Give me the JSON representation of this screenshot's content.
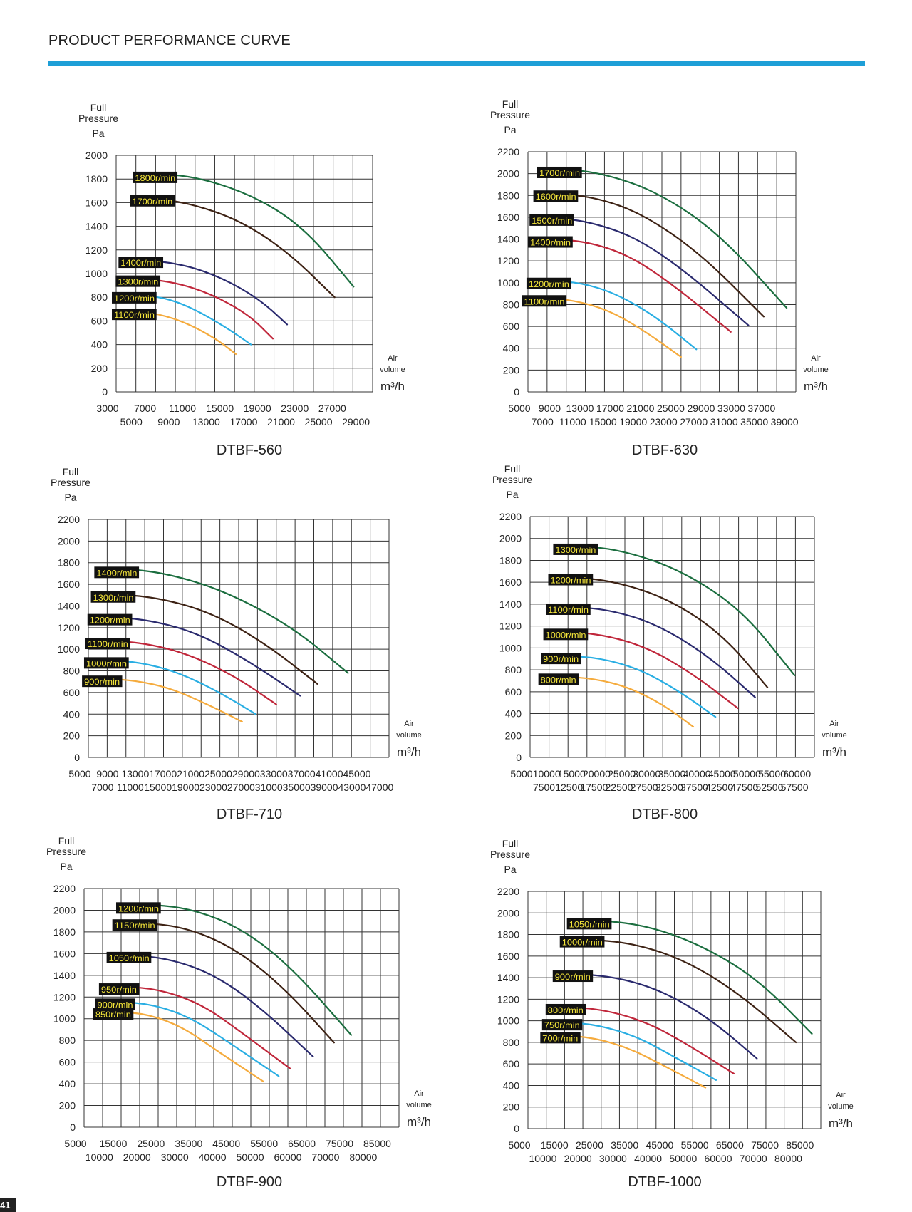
{
  "page": {
    "header_title": "PRODUCT PERFORMANCE CURVE",
    "page_number": "41"
  },
  "colors": {
    "accent": "#1e9fd7",
    "label_bg": "#111111",
    "label_text": "#f5e63a",
    "series": [
      "#1b6e3f",
      "#3d2214",
      "#2a2a6e",
      "#c0263a",
      "#29aee3",
      "#f5ab3d"
    ]
  },
  "chart_data": [
    {
      "type": "line",
      "title": "DTBF-560",
      "ylabel_lines": [
        "Full",
        "Pressure",
        "Pa"
      ],
      "xlabel_lines": [
        "Air",
        "volume",
        "m³/h"
      ],
      "ylim": [
        0,
        2000
      ],
      "yticks": [
        "0",
        "200",
        "400",
        "600",
        "800",
        "1000",
        "1200",
        "1400",
        "1600",
        "1800",
        "2000"
      ],
      "xlim": [
        3000,
        30000
      ],
      "xticks_top": [
        "3000",
        "7000",
        "11000",
        "15000",
        "19000",
        "23000",
        "27000"
      ],
      "xticks_bottom": [
        "5000",
        "9000",
        "13000",
        "17000",
        "21000",
        "25000",
        "29000"
      ],
      "series": [
        {
          "name": "1800r/min",
          "x": [
            7000,
            12000,
            18000,
            23000,
            28000
          ],
          "y": [
            1850,
            1810,
            1640,
            1370,
            890
          ]
        },
        {
          "name": "1700r/min",
          "x": [
            6700,
            11000,
            16000,
            21000,
            26000
          ],
          "y": [
            1640,
            1590,
            1450,
            1190,
            800
          ]
        },
        {
          "name": "1400r/min",
          "x": [
            5500,
            10000,
            14000,
            18000,
            21000
          ],
          "y": [
            1120,
            1080,
            970,
            790,
            570
          ]
        },
        {
          "name": "1300r/min",
          "x": [
            5200,
            9000,
            13000,
            17000,
            19500
          ],
          "y": [
            960,
            930,
            830,
            650,
            450
          ]
        },
        {
          "name": "1200r/min",
          "x": [
            4800,
            8000,
            11000,
            14500,
            17200
          ],
          "y": [
            820,
            800,
            710,
            550,
            400
          ]
        },
        {
          "name": "1100r/min",
          "x": [
            4800,
            7500,
            10500,
            13500,
            15600
          ],
          "y": [
            680,
            660,
            580,
            450,
            320
          ]
        }
      ]
    },
    {
      "type": "line",
      "title": "DTBF-630",
      "ylabel_lines": [
        "Full",
        "Pressure",
        "Pa"
      ],
      "xlabel_lines": [
        "Air",
        "volume",
        "m³/h"
      ],
      "ylim": [
        0,
        2200
      ],
      "yticks": [
        "0",
        "200",
        "400",
        "600",
        "800",
        "1000",
        "1200",
        "1400",
        "1600",
        "1800",
        "2000",
        "2200"
      ],
      "xlim": [
        5000,
        40000
      ],
      "xticks_top": [
        "5000",
        "9000",
        "13000",
        "17000",
        "21000",
        "25000",
        "29000",
        "33000",
        "37000"
      ],
      "xticks_bottom": [
        "7000",
        "11000",
        "15000",
        "19000",
        "23000",
        "27000",
        "31000",
        "35000",
        "39000"
      ],
      "series": [
        {
          "name": "1700r/min",
          "x": [
            9000,
            15000,
            22000,
            30000,
            38800
          ],
          "y": [
            2050,
            2000,
            1830,
            1450,
            770
          ]
        },
        {
          "name": "1600r/min",
          "x": [
            8500,
            14000,
            20000,
            27500,
            35800
          ],
          "y": [
            1820,
            1780,
            1630,
            1270,
            690
          ]
        },
        {
          "name": "1500r/min",
          "x": [
            8000,
            13000,
            19000,
            25500,
            33800
          ],
          "y": [
            1600,
            1560,
            1420,
            1110,
            610
          ]
        },
        {
          "name": "1400r/min",
          "x": [
            7800,
            12500,
            18000,
            24000,
            31500
          ],
          "y": [
            1400,
            1380,
            1260,
            980,
            550
          ]
        },
        {
          "name": "1200r/min",
          "x": [
            7600,
            12000,
            16500,
            21500,
            27000
          ],
          "y": [
            1020,
            1000,
            900,
            700,
            390
          ]
        },
        {
          "name": "1100r/min",
          "x": [
            7000,
            11000,
            15500,
            20000,
            25000
          ],
          "y": [
            860,
            840,
            750,
            570,
            320
          ]
        }
      ]
    },
    {
      "type": "line",
      "title": "DTBF-710",
      "ylabel_lines": [
        "Full",
        "Pressure",
        "Pa"
      ],
      "xlabel_lines": [
        "Air",
        "volume",
        "m³/h"
      ],
      "ylim": [
        0,
        2200
      ],
      "yticks": [
        "0",
        "200",
        "400",
        "600",
        "800",
        "1000",
        "1200",
        "1400",
        "1600",
        "1800",
        "2000",
        "2200"
      ],
      "xlim": [
        5000,
        49000
      ],
      "xticks_top": [
        "5000",
        "9000",
        "13000",
        "17000",
        "21000",
        "25000",
        "29000",
        "33000",
        "37000",
        "41000",
        "45000"
      ],
      "xticks_bottom": [
        "7000",
        "11000",
        "15000",
        "19000",
        "23000",
        "27000",
        "31000",
        "35000",
        "39000",
        "43000",
        "47000"
      ],
      "series": [
        {
          "name": "1400r/min",
          "x": [
            9000,
            16000,
            25000,
            35000,
            43000
          ],
          "y": [
            1750,
            1710,
            1540,
            1200,
            780
          ]
        },
        {
          "name": "1300r/min",
          "x": [
            8500,
            15000,
            23000,
            31000,
            38500
          ],
          "y": [
            1510,
            1480,
            1340,
            1050,
            680
          ]
        },
        {
          "name": "1200r/min",
          "x": [
            8000,
            14000,
            21000,
            28500,
            36000
          ],
          "y": [
            1300,
            1270,
            1150,
            890,
            570
          ]
        },
        {
          "name": "1100r/min",
          "x": [
            7700,
            13000,
            19500,
            26500,
            32500
          ],
          "y": [
            1080,
            1060,
            960,
            750,
            490
          ]
        },
        {
          "name": "1000r/min",
          "x": [
            7500,
            12500,
            18000,
            24000,
            29500
          ],
          "y": [
            900,
            880,
            790,
            610,
            400
          ]
        },
        {
          "name": "900r/min",
          "x": [
            7200,
            12000,
            17000,
            22500,
            27500
          ],
          "y": [
            730,
            710,
            640,
            490,
            330
          ]
        }
      ]
    },
    {
      "type": "line",
      "title": "DTBF-800",
      "ylabel_lines": [
        "Full",
        "Pressure",
        "Pa"
      ],
      "xlabel_lines": [
        "Air",
        "volume",
        "m³/h"
      ],
      "ylim": [
        0,
        2200
      ],
      "yticks": [
        "0",
        "200",
        "400",
        "600",
        "800",
        "1000",
        "1200",
        "1400",
        "1600",
        "1800",
        "2000",
        "2200"
      ],
      "xlim": [
        5000,
        62500
      ],
      "xticks_top": [
        "5000",
        "10000",
        "15000",
        "20000",
        "25000",
        "30000",
        "35000",
        "40000",
        "45000",
        "50000",
        "55000",
        "60000"
      ],
      "xticks_bottom": [
        "7500",
        "12500",
        "17500",
        "22500",
        "27500",
        "32500",
        "37500",
        "42500",
        "47500",
        "52500",
        "57500"
      ],
      "series": [
        {
          "name": "1300r/min",
          "x": [
            14000,
            24000,
            36000,
            48000,
            58500
          ],
          "y": [
            1940,
            1890,
            1700,
            1340,
            750
          ]
        },
        {
          "name": "1200r/min",
          "x": [
            13000,
            22000,
            33000,
            44000,
            53000
          ],
          "y": [
            1650,
            1610,
            1450,
            1120,
            640
          ]
        },
        {
          "name": "1100r/min",
          "x": [
            12500,
            21000,
            30500,
            41000,
            50500
          ],
          "y": [
            1380,
            1350,
            1220,
            930,
            550
          ]
        },
        {
          "name": "1000r/min",
          "x": [
            12000,
            20000,
            29000,
            38000,
            47000
          ],
          "y": [
            1150,
            1120,
            1000,
            760,
            450
          ]
        },
        {
          "name": "900r/min",
          "x": [
            11500,
            19000,
            27000,
            35000,
            42500
          ],
          "y": [
            930,
            910,
            810,
            610,
            370
          ]
        },
        {
          "name": "800r/min",
          "x": [
            11000,
            18000,
            25000,
            32000,
            38000
          ],
          "y": [
            740,
            720,
            640,
            480,
            280
          ]
        }
      ]
    },
    {
      "type": "line",
      "title": "DTBF-900",
      "ylabel_lines": [
        "Full",
        "Pressure",
        "Pa"
      ],
      "xlabel_lines": [
        "Air",
        "volume",
        "m³/h"
      ],
      "ylim": [
        0,
        2200
      ],
      "yticks": [
        "0",
        "200",
        "400",
        "600",
        "800",
        "1000",
        "1200",
        "1400",
        "1600",
        "1800",
        "2000",
        "2200"
      ],
      "xlim": [
        5000,
        87500
      ],
      "xticks_top": [
        "5000",
        "15000",
        "25000",
        "35000",
        "45000",
        "55000",
        "65000",
        "75000",
        "85000"
      ],
      "xticks_bottom": [
        "10000",
        "20000",
        "30000",
        "40000",
        "50000",
        "60000",
        "70000",
        "80000"
      ],
      "series": [
        {
          "name": "1200r/min",
          "x": [
            19000,
            33000,
            47000,
            60000,
            75000
          ],
          "y": [
            2060,
            2020,
            1820,
            1450,
            850
          ]
        },
        {
          "name": "1150r/min",
          "x": [
            18000,
            31000,
            44000,
            57000,
            70500
          ],
          "y": [
            1890,
            1850,
            1660,
            1300,
            780
          ]
        },
        {
          "name": "1050r/min",
          "x": [
            16500,
            28000,
            40000,
            52000,
            65000
          ],
          "y": [
            1590,
            1550,
            1390,
            1080,
            650
          ]
        },
        {
          "name": "950r/min",
          "x": [
            14500,
            25000,
            36000,
            46000,
            59000
          ],
          "y": [
            1300,
            1270,
            1130,
            880,
            540
          ]
        },
        {
          "name": "900r/min",
          "x": [
            13500,
            23500,
            33500,
            43000,
            56000
          ],
          "y": [
            1160,
            1130,
            1000,
            780,
            470
          ]
        },
        {
          "name": "850r/min",
          "x": [
            13000,
            22000,
            31000,
            40000,
            52000
          ],
          "y": [
            1070,
            1040,
            920,
            700,
            420
          ]
        }
      ]
    },
    {
      "type": "line",
      "title": "DTBF-1000",
      "ylabel_lines": [
        "Full",
        "Pressure",
        "Pa"
      ],
      "xlabel_lines": [
        "Air",
        "volume",
        "m³/h"
      ],
      "ylim": [
        0,
        2200
      ],
      "yticks": [
        "0",
        "200",
        "400",
        "600",
        "800",
        "1000",
        "1200",
        "1400",
        "1600",
        "1800",
        "2000",
        "2200"
      ],
      "xlim": [
        5000,
        87500
      ],
      "xticks_top": [
        "5000",
        "15000",
        "25000",
        "35000",
        "45000",
        "55000",
        "65000",
        "75000",
        "85000"
      ],
      "xticks_bottom": [
        "10000",
        "20000",
        "30000",
        "40000",
        "50000",
        "60000",
        "70000",
        "80000"
      ],
      "series": [
        {
          "name": "1050r/min",
          "x": [
            22000,
            38000,
            54000,
            70000,
            85000
          ],
          "y": [
            1940,
            1890,
            1700,
            1380,
            880
          ]
        },
        {
          "name": "1000r/min",
          "x": [
            20000,
            35000,
            50000,
            65000,
            80500
          ],
          "y": [
            1760,
            1720,
            1550,
            1240,
            800
          ]
        },
        {
          "name": "900r/min",
          "x": [
            18000,
            31000,
            44000,
            57000,
            69500
          ],
          "y": [
            1440,
            1400,
            1260,
            1000,
            650
          ]
        },
        {
          "name": "800r/min",
          "x": [
            16000,
            27000,
            39000,
            50000,
            63000
          ],
          "y": [
            1130,
            1100,
            980,
            780,
            510
          ]
        },
        {
          "name": "750r/min",
          "x": [
            15000,
            25000,
            36000,
            46000,
            58000
          ],
          "y": [
            990,
            960,
            850,
            670,
            450
          ]
        },
        {
          "name": "700r/min",
          "x": [
            14500,
            24000,
            34000,
            43500,
            55000
          ],
          "y": [
            870,
            840,
            740,
            580,
            380
          ]
        }
      ]
    }
  ]
}
